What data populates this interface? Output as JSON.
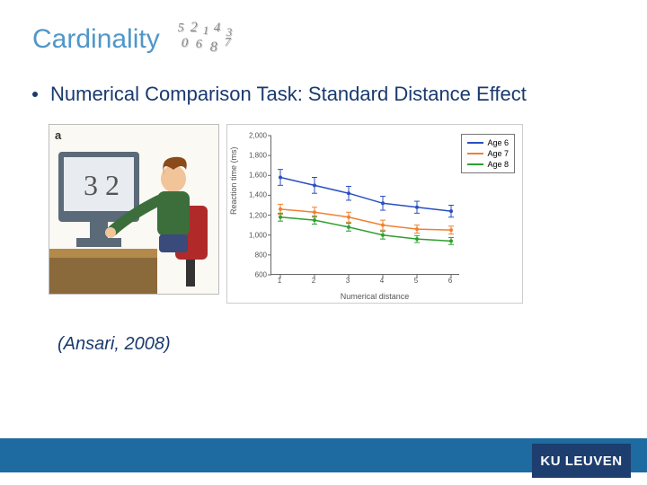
{
  "title": "Cardinality",
  "bullet": "Numerical Comparison Task: Standard Distance Effect",
  "citation": "(Ansari, 2008)",
  "footer_logo": "KU LEUVEN",
  "panel_label": "a",
  "deco_numbers": [
    "5",
    "2",
    "1",
    "4",
    "0",
    "6",
    "8",
    "7",
    "3"
  ],
  "illustration": {
    "monitor_digits": [
      "3",
      "2"
    ],
    "shirt_color": "#3b6e3b",
    "hair_color": "#8a4a1a",
    "chair_color": "#b02a2a",
    "desk_color": "#b38a4a",
    "monitor_frame": "#5a6a78",
    "screen_bg": "#e8ecf0"
  },
  "chart": {
    "type": "line",
    "xlabel": "Numerical distance",
    "ylabel": "Reaction time (ms)",
    "ylim": [
      600,
      2000
    ],
    "ytick_step": 200,
    "x_categories": [
      1,
      2,
      3,
      4,
      5,
      6
    ],
    "series": [
      {
        "name": "Age 6",
        "color": "#2a4fbf",
        "values": [
          1580,
          1500,
          1420,
          1320,
          1280,
          1240
        ],
        "err": [
          80,
          80,
          70,
          70,
          60,
          60
        ]
      },
      {
        "name": "Age 7",
        "color": "#f08030",
        "values": [
          1260,
          1230,
          1180,
          1100,
          1060,
          1050
        ],
        "err": [
          50,
          50,
          50,
          50,
          40,
          40
        ]
      },
      {
        "name": "Age 8",
        "color": "#2f9f2f",
        "values": [
          1180,
          1150,
          1080,
          1000,
          960,
          940
        ],
        "err": [
          40,
          40,
          40,
          40,
          35,
          35
        ]
      }
    ],
    "axis_color": "#666666",
    "text_color": "#555555",
    "background_color": "#ffffff",
    "fontsize_ticks": 8,
    "fontsize_labels": 9
  },
  "colors": {
    "title": "#4f97c9",
    "body_text": "#1a3a6e",
    "footer_bar": "#1d6ba0",
    "footer_logo_bg": "#1d3e6e"
  }
}
